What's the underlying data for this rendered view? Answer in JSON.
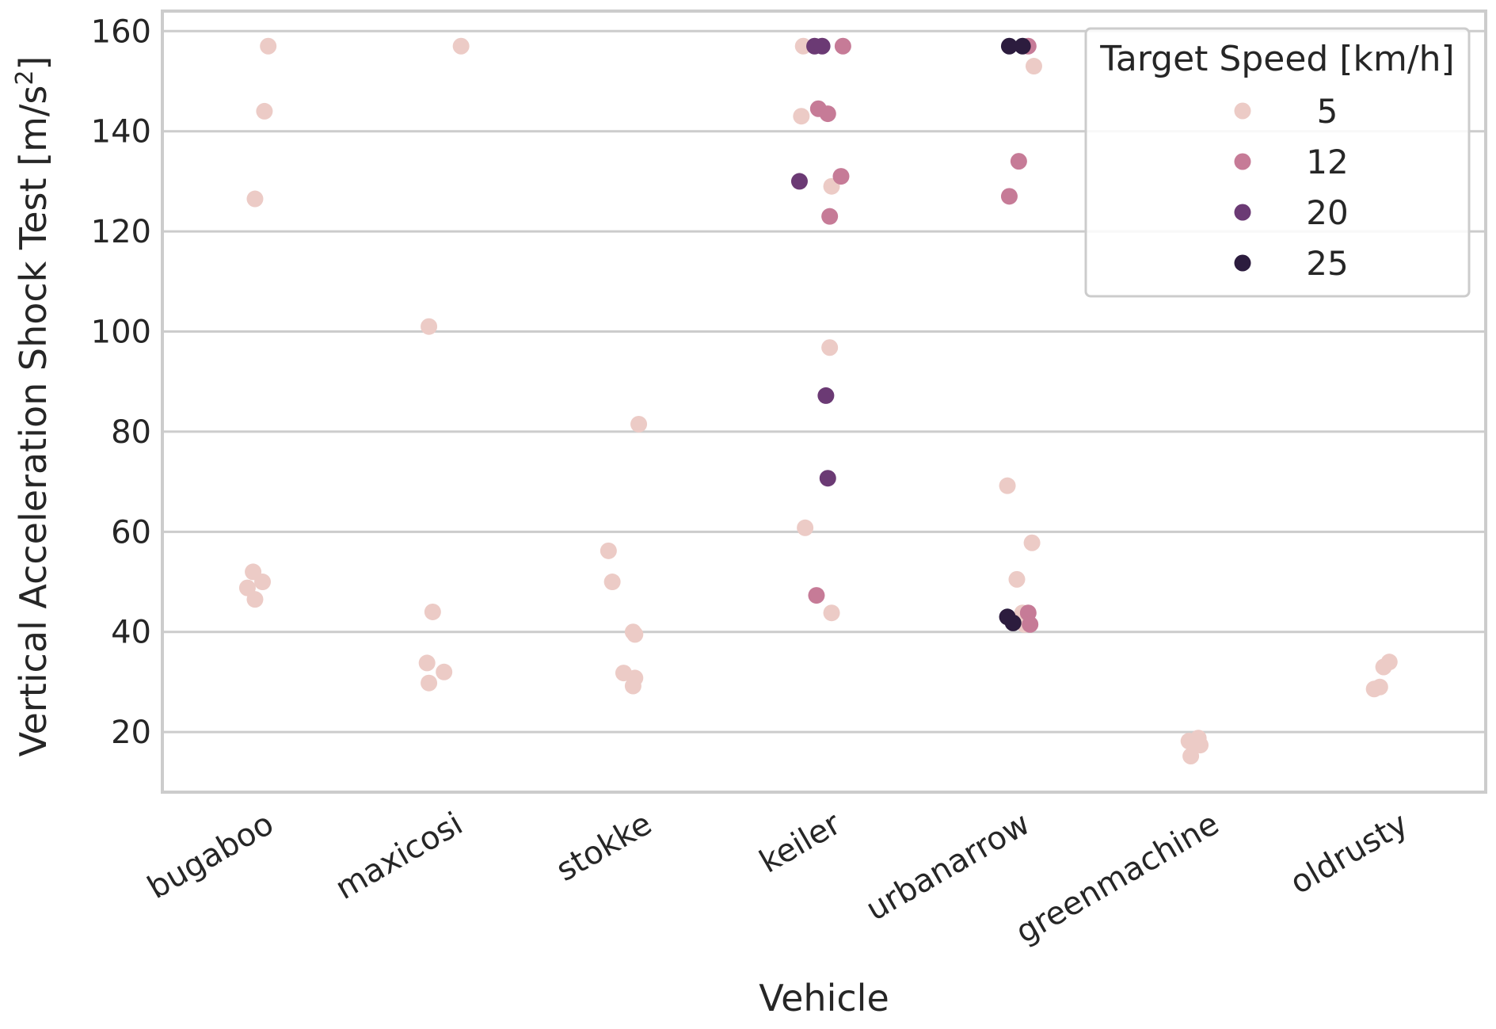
{
  "chart_data": {
    "type": "scatter",
    "title": "",
    "xlabel": "Vehicle",
    "ylabel": "Vertical Acceleration Shock Test [m/s²]",
    "ylim": [
      8,
      164
    ],
    "yticks": [
      20,
      40,
      60,
      80,
      100,
      120,
      140,
      160
    ],
    "grid": true,
    "categories": [
      "bugaboo",
      "maxicosi",
      "stokke",
      "keiler",
      "urbanarrow",
      "greenmachine",
      "oldrusty"
    ],
    "legend": {
      "title": "Target Speed [km/h]",
      "placement": "top-right",
      "entries": [
        {
          "label": "5",
          "color": "#eccbc6"
        },
        {
          "label": "12",
          "color": "#c67b97"
        },
        {
          "label": "20",
          "color": "#6b3a74"
        },
        {
          "label": "25",
          "color": "#2c1c3e"
        }
      ]
    },
    "series": [
      {
        "name": "5",
        "color": "#eccbc6",
        "points": [
          {
            "category": "bugaboo",
            "offset": 0.06,
            "y": 157
          },
          {
            "category": "bugaboo",
            "offset": 0.04,
            "y": 144
          },
          {
            "category": "bugaboo",
            "offset": -0.01,
            "y": 126.5
          },
          {
            "category": "bugaboo",
            "offset": -0.02,
            "y": 52
          },
          {
            "category": "bugaboo",
            "offset": 0.03,
            "y": 50
          },
          {
            "category": "bugaboo",
            "offset": -0.05,
            "y": 48.8
          },
          {
            "category": "bugaboo",
            "offset": -0.01,
            "y": 46.5
          },
          {
            "category": "maxicosi",
            "offset": 0.08,
            "y": 157
          },
          {
            "category": "maxicosi",
            "offset": -0.09,
            "y": 101
          },
          {
            "category": "maxicosi",
            "offset": -0.07,
            "y": 44
          },
          {
            "category": "maxicosi",
            "offset": -0.1,
            "y": 33.8
          },
          {
            "category": "maxicosi",
            "offset": -0.01,
            "y": 32
          },
          {
            "category": "maxicosi",
            "offset": -0.09,
            "y": 29.8
          },
          {
            "category": "stokke",
            "offset": 0.02,
            "y": 81.5
          },
          {
            "category": "stokke",
            "offset": -0.14,
            "y": 56.2
          },
          {
            "category": "stokke",
            "offset": -0.12,
            "y": 50
          },
          {
            "category": "stokke",
            "offset": -0.01,
            "y": 40
          },
          {
            "category": "stokke",
            "offset": 0.0,
            "y": 39.5
          },
          {
            "category": "stokke",
            "offset": -0.06,
            "y": 31.8
          },
          {
            "category": "stokke",
            "offset": 0.0,
            "y": 30.8
          },
          {
            "category": "stokke",
            "offset": -0.01,
            "y": 29.2
          },
          {
            "category": "keiler",
            "offset": -0.11,
            "y": 157
          },
          {
            "category": "keiler",
            "offset": -0.12,
            "y": 143
          },
          {
            "category": "keiler",
            "offset": 0.04,
            "y": 129
          },
          {
            "category": "keiler",
            "offset": 0.03,
            "y": 96.8
          },
          {
            "category": "keiler",
            "offset": -0.1,
            "y": 60.8
          },
          {
            "category": "keiler",
            "offset": 0.04,
            "y": 43.8
          },
          {
            "category": "urbanarrow",
            "offset": 0.11,
            "y": 153
          },
          {
            "category": "urbanarrow",
            "offset": -0.03,
            "y": 69.2
          },
          {
            "category": "urbanarrow",
            "offset": 0.1,
            "y": 57.8
          },
          {
            "category": "urbanarrow",
            "offset": 0.02,
            "y": 50.5
          },
          {
            "category": "urbanarrow",
            "offset": 0.05,
            "y": 43.8
          },
          {
            "category": "urbanarrow",
            "offset": 0.06,
            "y": 41.5
          },
          {
            "category": "greenmachine",
            "offset": -0.07,
            "y": 18.2
          },
          {
            "category": "greenmachine",
            "offset": -0.02,
            "y": 18.8
          },
          {
            "category": "greenmachine",
            "offset": -0.01,
            "y": 17.4
          },
          {
            "category": "greenmachine",
            "offset": -0.06,
            "y": 15.2
          },
          {
            "category": "oldrusty",
            "offset": -0.09,
            "y": 28.6
          },
          {
            "category": "oldrusty",
            "offset": -0.06,
            "y": 29
          },
          {
            "category": "oldrusty",
            "offset": -0.04,
            "y": 33
          },
          {
            "category": "oldrusty",
            "offset": -0.01,
            "y": 34
          }
        ]
      },
      {
        "name": "12",
        "color": "#c67b97",
        "points": [
          {
            "category": "keiler",
            "offset": 0.1,
            "y": 157
          },
          {
            "category": "keiler",
            "offset": -0.03,
            "y": 144.5
          },
          {
            "category": "keiler",
            "offset": 0.02,
            "y": 143.5
          },
          {
            "category": "keiler",
            "offset": 0.09,
            "y": 131
          },
          {
            "category": "keiler",
            "offset": 0.03,
            "y": 123
          },
          {
            "category": "keiler",
            "offset": -0.04,
            "y": 47.3
          },
          {
            "category": "urbanarrow",
            "offset": 0.08,
            "y": 157
          },
          {
            "category": "urbanarrow",
            "offset": 0.03,
            "y": 134
          },
          {
            "category": "urbanarrow",
            "offset": -0.02,
            "y": 127
          },
          {
            "category": "urbanarrow",
            "offset": 0.08,
            "y": 43.8
          },
          {
            "category": "urbanarrow",
            "offset": 0.09,
            "y": 41.5
          }
        ]
      },
      {
        "name": "20",
        "color": "#6b3a74",
        "points": [
          {
            "category": "keiler",
            "offset": -0.05,
            "y": 157
          },
          {
            "category": "keiler",
            "offset": -0.01,
            "y": 157
          },
          {
            "category": "keiler",
            "offset": -0.13,
            "y": 130
          },
          {
            "category": "keiler",
            "offset": 0.01,
            "y": 87.2
          },
          {
            "category": "keiler",
            "offset": 0.02,
            "y": 70.7
          }
        ]
      },
      {
        "name": "25",
        "color": "#2c1c3e",
        "points": [
          {
            "category": "urbanarrow",
            "offset": -0.02,
            "y": 157
          },
          {
            "category": "urbanarrow",
            "offset": 0.05,
            "y": 157
          },
          {
            "category": "urbanarrow",
            "offset": -0.03,
            "y": 43
          },
          {
            "category": "urbanarrow",
            "offset": 0.0,
            "y": 41.8
          }
        ]
      }
    ]
  }
}
